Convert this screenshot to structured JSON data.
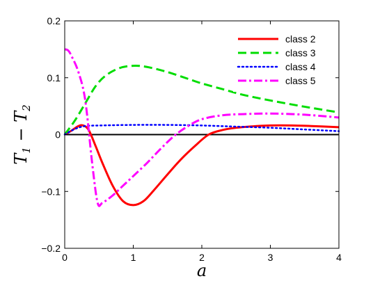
{
  "chart_data": {
    "type": "line",
    "xlabel": "a",
    "ylabel": "T1 − T2",
    "ylabel_main": "T",
    "ylabel_sub1": "1",
    "ylabel_minus": " − T",
    "ylabel_sub2": "2",
    "xlim": [
      0,
      4
    ],
    "ylim": [
      -0.2,
      0.2
    ],
    "x_ticks": [
      0,
      1,
      2,
      3,
      4
    ],
    "x_tick_labels": [
      "0",
      "1",
      "2",
      "3",
      "4"
    ],
    "y_ticks": [
      -0.2,
      -0.1,
      0,
      0.1,
      0.2
    ],
    "y_tick_labels": [
      "−0.2",
      "−0.1",
      "0",
      "0.1",
      "0.2"
    ],
    "grid": false,
    "legend_position": "top-right",
    "zero_line": true,
    "series": [
      {
        "name": "class 2",
        "color": "#ff0000",
        "style": "solid",
        "x": [
          0,
          0.1,
          0.2,
          0.27,
          0.35,
          0.45,
          0.55,
          0.7,
          0.85,
          1.0,
          1.15,
          1.3,
          1.5,
          1.7,
          1.9,
          2.1,
          2.3,
          2.5,
          2.8,
          3.0,
          3.3,
          3.6,
          4.0
        ],
        "y": [
          0,
          0.007,
          0.015,
          0.016,
          0.008,
          -0.02,
          -0.05,
          -0.09,
          -0.117,
          -0.124,
          -0.117,
          -0.098,
          -0.07,
          -0.043,
          -0.02,
          0.0,
          0.008,
          0.012,
          0.015,
          0.016,
          0.016,
          0.015,
          0.013
        ]
      },
      {
        "name": "class 3",
        "color": "#00dd00",
        "style": "dashed",
        "x": [
          0,
          0.15,
          0.3,
          0.45,
          0.6,
          0.8,
          1.0,
          1.2,
          1.5,
          1.8,
          2.0,
          2.3,
          2.6,
          3.0,
          3.5,
          4.0
        ],
        "y": [
          0,
          0.025,
          0.055,
          0.085,
          0.104,
          0.117,
          0.121,
          0.119,
          0.11,
          0.098,
          0.09,
          0.08,
          0.07,
          0.06,
          0.049,
          0.039
        ]
      },
      {
        "name": "class 4",
        "color": "#0000ff",
        "style": "dotted",
        "x": [
          0,
          0.15,
          0.3,
          0.5,
          1.0,
          1.5,
          2.0,
          2.5,
          3.0,
          3.5,
          4.0
        ],
        "y": [
          0,
          0.01,
          0.015,
          0.016,
          0.017,
          0.017,
          0.016,
          0.014,
          0.012,
          0.009,
          0.006
        ]
      },
      {
        "name": "class 5",
        "color": "#ff00ff",
        "style": "dashdot",
        "x": [
          0,
          0.05,
          0.1,
          0.2,
          0.3,
          0.4,
          0.48,
          0.55,
          0.7,
          0.85,
          1.0,
          1.2,
          1.4,
          1.6,
          1.8,
          2.0,
          2.3,
          2.6,
          3.0,
          3.5,
          4.0
        ],
        "y": [
          0.15,
          0.148,
          0.138,
          0.11,
          0.06,
          -0.05,
          -0.12,
          -0.12,
          -0.107,
          -0.09,
          -0.073,
          -0.05,
          -0.025,
          -0.002,
          0.015,
          0.027,
          0.034,
          0.036,
          0.037,
          0.035,
          0.03
        ]
      }
    ]
  }
}
